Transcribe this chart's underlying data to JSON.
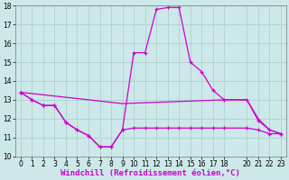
{
  "xlabel": "Windchill (Refroidissement éolien,°C)",
  "bg_color": "#cce8e8",
  "grid_color": "#aacccc",
  "line_color": "#cc00cc",
  "xlim_min": -0.5,
  "xlim_max": 23.5,
  "ylim_min": 10,
  "ylim_max": 18,
  "yticks": [
    10,
    11,
    12,
    13,
    14,
    15,
    16,
    17,
    18
  ],
  "xticks": [
    0,
    1,
    2,
    3,
    4,
    5,
    6,
    7,
    8,
    9,
    10,
    11,
    12,
    13,
    14,
    15,
    16,
    17,
    18,
    20,
    21,
    22,
    23
  ],
  "line1_x": [
    0,
    1,
    2,
    3,
    4,
    5,
    6,
    7,
    8,
    9,
    10,
    11,
    12,
    13,
    14,
    15,
    16,
    17,
    18,
    20,
    21,
    22,
    23
  ],
  "line1_y": [
    13.4,
    13.0,
    12.7,
    12.7,
    11.8,
    11.4,
    11.1,
    10.5,
    10.5,
    11.4,
    15.5,
    15.5,
    17.8,
    17.9,
    17.9,
    15.0,
    14.5,
    13.5,
    13.0,
    13.0,
    11.9,
    11.4,
    11.2
  ],
  "line2_x": [
    0,
    1,
    2,
    3,
    4,
    5,
    6,
    7,
    8,
    9,
    10,
    11,
    12,
    13,
    14,
    15,
    16,
    17,
    18,
    20,
    21,
    22,
    23
  ],
  "line2_y": [
    13.4,
    13.0,
    12.7,
    12.7,
    11.8,
    11.4,
    11.1,
    10.5,
    10.5,
    11.4,
    11.5,
    11.5,
    11.5,
    11.5,
    11.5,
    11.5,
    11.5,
    11.5,
    11.5,
    11.5,
    11.4,
    11.2,
    11.2
  ],
  "line3_x": [
    0,
    9,
    18,
    20,
    21,
    22,
    23
  ],
  "line3_y": [
    13.4,
    12.8,
    13.0,
    13.0,
    12.0,
    11.4,
    11.2
  ],
  "xlabel_fontsize": 6.5,
  "tick_fontsize": 5.5
}
